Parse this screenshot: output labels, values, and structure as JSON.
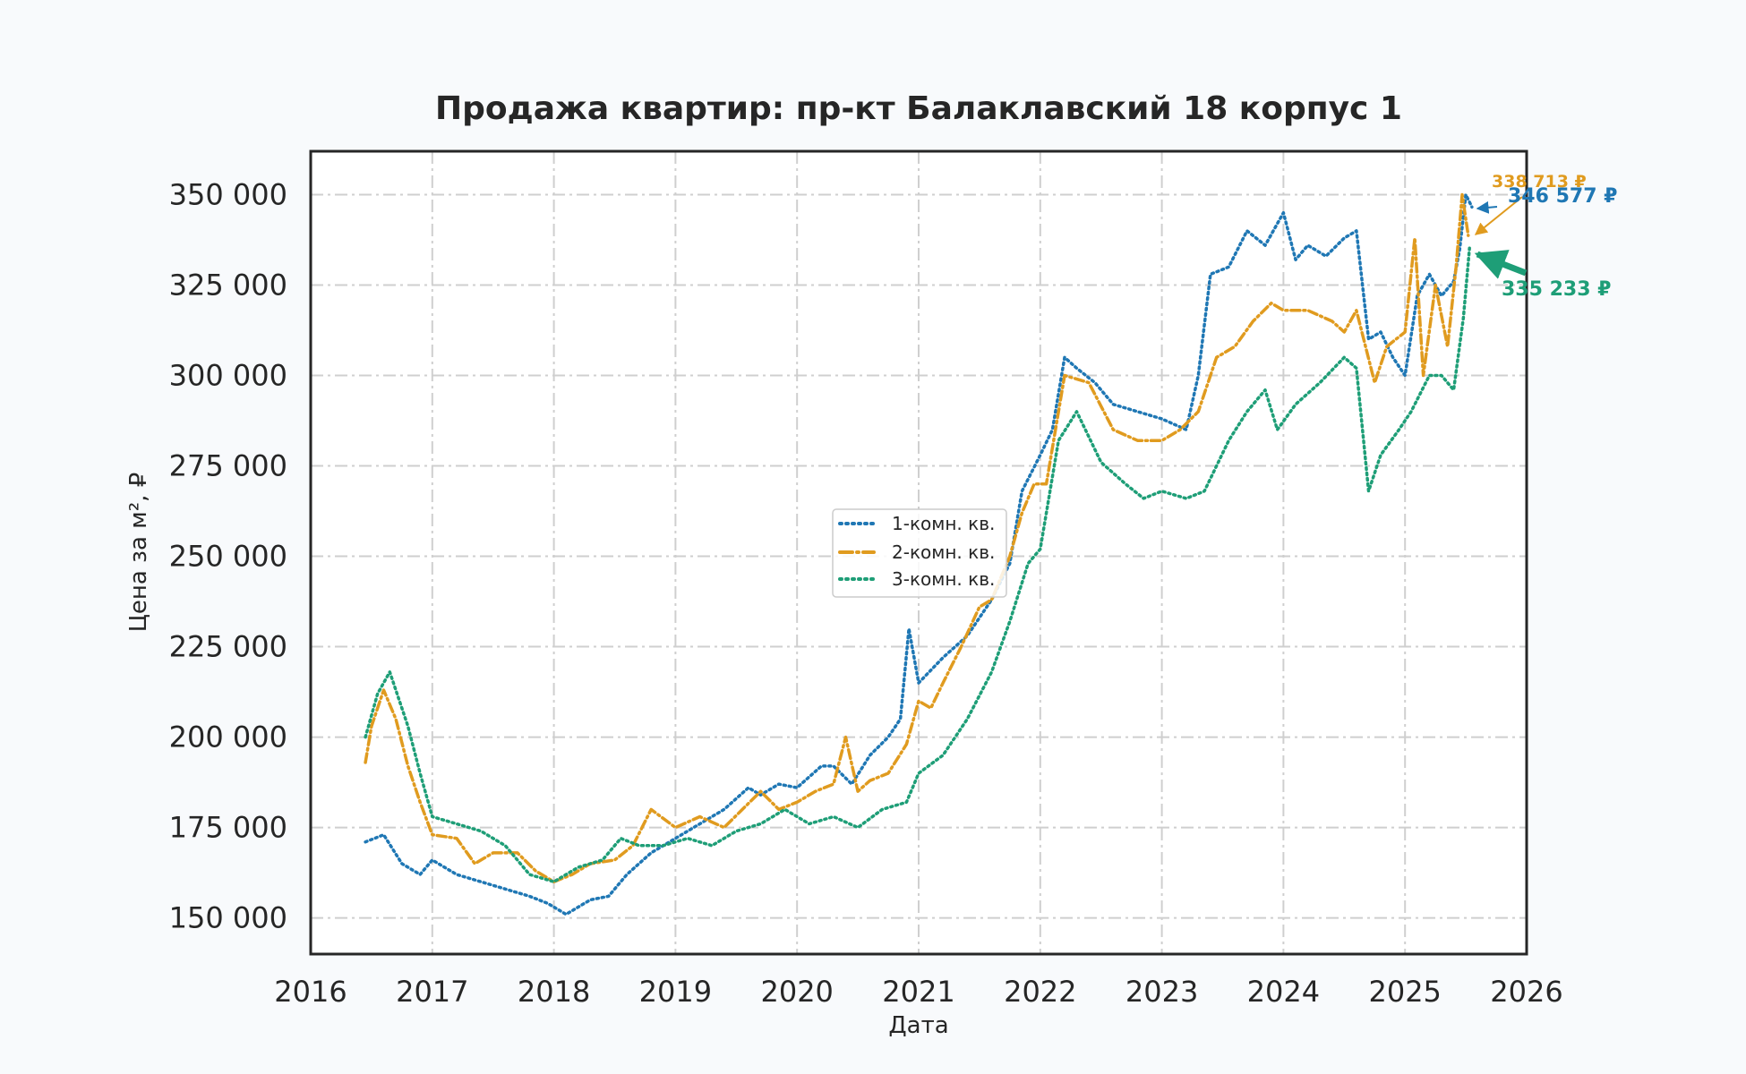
{
  "chart_data": {
    "type": "line",
    "title": "Продажа квартир: пр-кт Балаклавский 18 корпус 1",
    "xlabel": "Дата",
    "ylabel": "Цена за м², ₽",
    "xlim": [
      2016.0,
      2026.0
    ],
    "ylim": [
      140000,
      362000
    ],
    "x_ticks": [
      "2016",
      "2017",
      "2018",
      "2019",
      "2020",
      "2021",
      "2022",
      "2023",
      "2024",
      "2025",
      "2026"
    ],
    "y_ticks": [
      150000,
      175000,
      200000,
      225000,
      250000,
      275000,
      300000,
      325000,
      350000
    ],
    "y_tick_labels": [
      "150 000",
      "175 000",
      "200 000",
      "225 000",
      "250 000",
      "275 000",
      "300 000",
      "325 000",
      "350 000"
    ],
    "grid": true,
    "legend_position": "center",
    "series": [
      {
        "name": "1-комн. кв.",
        "color": "#1f77b4",
        "style": "dotted",
        "x": [
          2016.45,
          2016.6,
          2016.75,
          2016.9,
          2017.0,
          2017.2,
          2017.4,
          2017.6,
          2017.8,
          2017.95,
          2018.1,
          2018.3,
          2018.45,
          2018.6,
          2018.8,
          2019.0,
          2019.2,
          2019.4,
          2019.6,
          2019.7,
          2019.85,
          2020.0,
          2020.2,
          2020.3,
          2020.45,
          2020.6,
          2020.75,
          2020.85,
          2020.92,
          2021.0,
          2021.2,
          2021.4,
          2021.6,
          2021.75,
          2021.85,
          2022.0,
          2022.1,
          2022.2,
          2022.3,
          2022.45,
          2022.6,
          2022.8,
          2023.0,
          2023.2,
          2023.3,
          2023.4,
          2023.55,
          2023.7,
          2023.85,
          2024.0,
          2024.1,
          2024.2,
          2024.35,
          2024.5,
          2024.6,
          2024.7,
          2024.8,
          2024.9,
          2025.0,
          2025.1,
          2025.2,
          2025.3,
          2025.4,
          2025.45,
          2025.5,
          2025.55
        ],
        "y": [
          171000,
          173000,
          165000,
          162000,
          166000,
          162000,
          160000,
          158000,
          156000,
          154000,
          151000,
          155000,
          156000,
          162000,
          168000,
          172000,
          176000,
          180000,
          186000,
          184000,
          187000,
          186000,
          192000,
          192000,
          187000,
          195000,
          200000,
          205000,
          230000,
          215000,
          222000,
          228000,
          238000,
          248000,
          268000,
          278000,
          285000,
          305000,
          302000,
          298000,
          292000,
          290000,
          288000,
          285000,
          300000,
          328000,
          330000,
          340000,
          336000,
          345000,
          332000,
          336000,
          333000,
          338000,
          340000,
          310000,
          312000,
          305000,
          300000,
          322000,
          328000,
          322000,
          326000,
          335000,
          350000,
          346577
        ]
      },
      {
        "name": "2-комн. кв.",
        "color": "#e09b1f",
        "style": "dash-dot",
        "x": [
          2016.45,
          2016.5,
          2016.6,
          2016.7,
          2016.8,
          2016.9,
          2017.0,
          2017.2,
          2017.35,
          2017.5,
          2017.7,
          2017.85,
          2018.0,
          2018.15,
          2018.3,
          2018.5,
          2018.65,
          2018.8,
          2019.0,
          2019.2,
          2019.4,
          2019.55,
          2019.7,
          2019.85,
          2020.0,
          2020.15,
          2020.3,
          2020.4,
          2020.5,
          2020.6,
          2020.75,
          2020.9,
          2021.0,
          2021.1,
          2021.2,
          2021.35,
          2021.5,
          2021.6,
          2021.75,
          2021.85,
          2021.95,
          2022.05,
          2022.2,
          2022.4,
          2022.6,
          2022.8,
          2023.0,
          2023.15,
          2023.3,
          2023.45,
          2023.6,
          2023.75,
          2023.9,
          2024.0,
          2024.2,
          2024.4,
          2024.5,
          2024.6,
          2024.75,
          2024.85,
          2025.0,
          2025.08,
          2025.15,
          2025.25,
          2025.35,
          2025.42,
          2025.47,
          2025.52
        ],
        "y": [
          193000,
          203000,
          213000,
          205000,
          192000,
          182000,
          173000,
          172000,
          165000,
          168000,
          168000,
          163000,
          160000,
          162000,
          165000,
          166000,
          170000,
          180000,
          175000,
          178000,
          175000,
          180000,
          185000,
          180000,
          182000,
          185000,
          187000,
          200000,
          185000,
          188000,
          190000,
          198000,
          210000,
          208000,
          215000,
          225000,
          236000,
          238000,
          250000,
          262000,
          270000,
          270000,
          300000,
          298000,
          285000,
          282000,
          282000,
          285000,
          290000,
          305000,
          308000,
          315000,
          320000,
          318000,
          318000,
          315000,
          312000,
          318000,
          298000,
          308000,
          312000,
          338000,
          300000,
          325000,
          308000,
          330000,
          350000,
          338713
        ]
      },
      {
        "name": "3-комн. кв.",
        "color": "#1e9e77",
        "style": "dotted",
        "x": [
          2016.45,
          2016.55,
          2016.65,
          2016.8,
          2016.9,
          2017.0,
          2017.2,
          2017.4,
          2017.6,
          2017.8,
          2018.0,
          2018.2,
          2018.4,
          2018.55,
          2018.7,
          2018.9,
          2019.1,
          2019.3,
          2019.5,
          2019.7,
          2019.9,
          2020.1,
          2020.3,
          2020.5,
          2020.7,
          2020.9,
          2021.0,
          2021.2,
          2021.4,
          2021.6,
          2021.75,
          2021.9,
          2022.0,
          2022.15,
          2022.3,
          2022.5,
          2022.7,
          2022.85,
          2023.0,
          2023.2,
          2023.35,
          2023.55,
          2023.7,
          2023.85,
          2023.95,
          2024.1,
          2024.3,
          2024.5,
          2024.6,
          2024.7,
          2024.8,
          2024.95,
          2025.05,
          2025.2,
          2025.3,
          2025.4,
          2025.48,
          2025.53
        ],
        "y": [
          200000,
          212000,
          218000,
          203000,
          190000,
          178000,
          176000,
          174000,
          170000,
          162000,
          160000,
          164000,
          166000,
          172000,
          170000,
          170000,
          172000,
          170000,
          174000,
          176000,
          180000,
          176000,
          178000,
          175000,
          180000,
          182000,
          190000,
          195000,
          205000,
          218000,
          232000,
          248000,
          252000,
          282000,
          290000,
          276000,
          270000,
          266000,
          268000,
          266000,
          268000,
          282000,
          290000,
          296000,
          285000,
          292000,
          298000,
          305000,
          302000,
          268000,
          278000,
          285000,
          290000,
          300000,
          300000,
          296000,
          316000,
          335233
        ]
      }
    ],
    "annotations": [
      {
        "text": "338 713 ₽",
        "series": "2-комн. кв.",
        "value": 338713,
        "color": "#e09b1f"
      },
      {
        "text": "346 577 ₽",
        "series": "1-комн. кв.",
        "value": 346577,
        "color": "#1f77b4"
      },
      {
        "text": "335 233 ₽",
        "series": "3-комн. кв.",
        "value": 335233,
        "color": "#1e9e77"
      }
    ]
  }
}
